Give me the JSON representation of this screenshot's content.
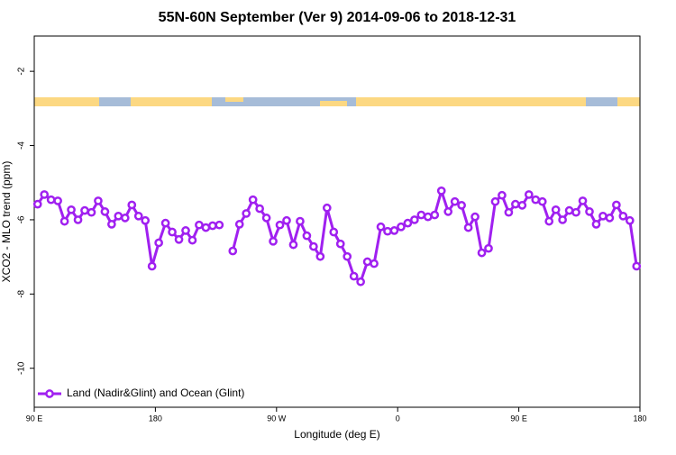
{
  "chart_data": {
    "type": "line",
    "title": "55N-60N September (Ver 9)   2014-09-06 to 2018-12-31",
    "xlabel": "Longitude (deg E)",
    "ylabel": "XCO2 - MLO trend (ppm)",
    "x": [
      92.5,
      97.5,
      102.5,
      107.5,
      112.5,
      117.5,
      122.5,
      127.5,
      132.5,
      137.5,
      142.5,
      147.5,
      152.5,
      157.5,
      162.5,
      167.5,
      172.5,
      177.5,
      182.5,
      187.5,
      192.5,
      197.5,
      202.5,
      207.5,
      212.5,
      217.5,
      222.5,
      227.5,
      232.5,
      237.5,
      242.5,
      247.5,
      252.5,
      257.5,
      262.5,
      267.5,
      272.5,
      277.5,
      282.5,
      287.5,
      292.5,
      297.5,
      302.5,
      307.5,
      312.5,
      317.5,
      322.5,
      327.5,
      332.5,
      337.5,
      342.5,
      347.5,
      352.5,
      357.5,
      362.5,
      367.5,
      372.5,
      377.5,
      382.5,
      387.5,
      392.5,
      397.5,
      402.5,
      407.5,
      412.5,
      417.5,
      422.5,
      427.5,
      432.5,
      437.5,
      442.5,
      447.5,
      452.5,
      457.5,
      462.5,
      467.5,
      472.5,
      477.5,
      482.5,
      487.5,
      492.5,
      497.5,
      502.5,
      507.5,
      512.5,
      517.5,
      522.5,
      527.5,
      532.5,
      537.5
    ],
    "series": [
      {
        "name": "Land (Nadir&Glint) and Ocean (Glint)",
        "color": "#a020f0",
        "values": [
          -5.58,
          -5.32,
          -5.46,
          -5.49,
          -6.04,
          -5.73,
          -6.0,
          -5.75,
          -5.8,
          -5.49,
          -5.78,
          -6.12,
          -5.9,
          -5.95,
          -5.6,
          -5.9,
          -6.02,
          -7.25,
          -6.62,
          -6.09,
          -6.33,
          -6.53,
          -6.29,
          -6.55,
          -6.14,
          -6.21,
          -6.16,
          -6.14,
          null,
          -6.84,
          -6.12,
          -5.83,
          -5.46,
          -5.7,
          -5.95,
          -6.58,
          -6.14,
          -6.02,
          -6.67,
          -6.04,
          -6.43,
          -6.72,
          -6.99,
          -5.68,
          -6.33,
          -6.65,
          -6.99,
          -7.52,
          -7.67,
          -7.13,
          -7.18,
          -6.19,
          -6.31,
          -6.29,
          -6.19,
          -6.09,
          -6.0,
          -5.87,
          -5.92,
          -5.87,
          -5.22,
          -5.78,
          -5.51,
          -5.61,
          -6.21,
          -5.92,
          -6.89,
          -6.77,
          -5.51,
          -5.34,
          -5.8,
          -5.58,
          -5.61,
          -5.32,
          -5.46,
          -5.51,
          -6.04,
          -5.73,
          -6.0,
          -5.75,
          -5.8,
          -5.49,
          -5.78,
          -6.12,
          -5.9,
          -5.95,
          -5.6,
          -5.9,
          -6.02,
          -7.25
        ]
      }
    ],
    "xlim": [
      90,
      540
    ],
    "xticks": [
      {
        "value": 90,
        "label": "90 E"
      },
      180,
      {
        "value": 270,
        "label": "90 W"
      },
      {
        "value": 360,
        "label": "0"
      },
      {
        "value": 450,
        "label": "90 E"
      },
      {
        "value": 540,
        "label": "180"
      }
    ],
    "ylim": [
      -11.05,
      -1.05
    ],
    "yticks": [
      -10,
      -8,
      -6,
      -4,
      -2
    ],
    "legend": "bottom-left"
  }
}
